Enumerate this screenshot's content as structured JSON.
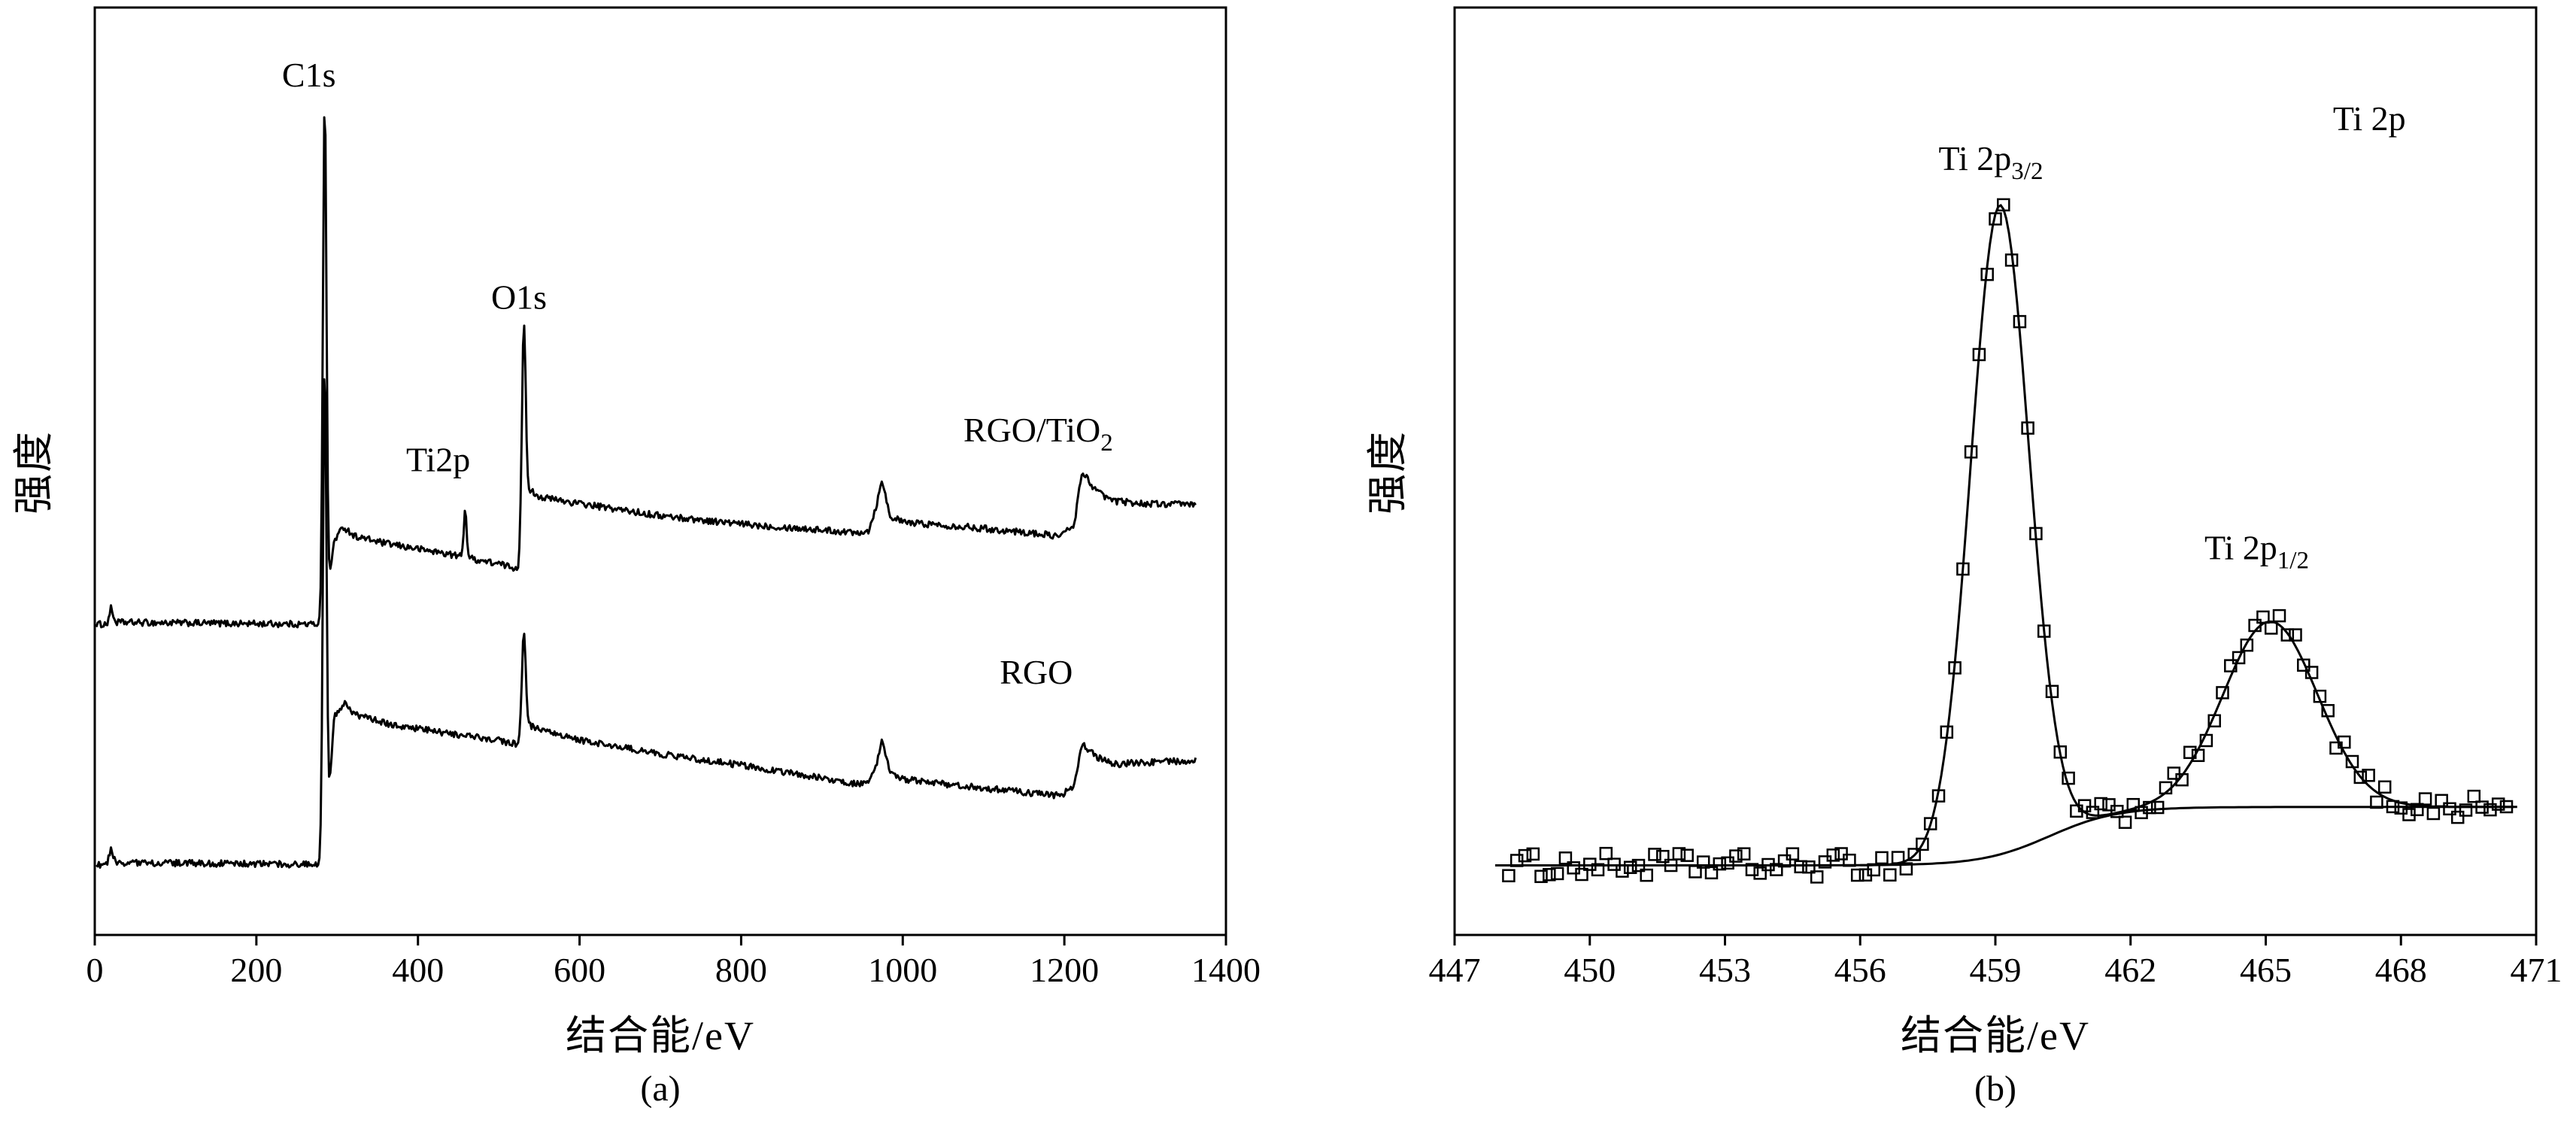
{
  "figure": {
    "background": "#ffffff",
    "panel_a": {
      "xlabel": "结合能/eV",
      "ylabel": "强度",
      "caption": "(a)"
    },
    "panel_b": {
      "xlabel": "结合能/eV",
      "ylabel": "强度",
      "caption": "(b)"
    }
  },
  "colors": {
    "line": "#000000",
    "axis": "#000000",
    "background": "#ffffff"
  },
  "chart_data": [
    {
      "id": "a",
      "type": "line",
      "description": "XPS survey spectra of RGO/TiO2 and RGO",
      "title": "",
      "xlabel": "结合能/eV",
      "ylabel": "强度",
      "xlim": [
        0,
        1400
      ],
      "x_ticks": [
        0,
        200,
        400,
        600,
        800,
        1000,
        1200,
        1400
      ],
      "ylim": [
        0,
        1
      ],
      "grid": false,
      "caption": "(a)",
      "series": [
        {
          "name": "RGO/TiO2",
          "peaks": [
            {
              "label": "C1s",
              "center": 284.6,
              "amp": 0.56,
              "sigma": 2.2
            },
            {
              "label": "Ti2p",
              "center": 458.5,
              "amp": 0.052,
              "sigma": 1.8
            },
            {
              "label": "O1s",
              "center": 531.0,
              "amp": 0.22,
              "sigma": 2.4
            }
          ],
          "baseline": [
            [
              2,
              0.335
            ],
            [
              15,
              0.335
            ],
            [
              20,
              0.352
            ],
            [
              26,
              0.337
            ],
            [
              275,
              0.335
            ],
            [
              286,
              0.345
            ],
            [
              296,
              0.425
            ],
            [
              308,
              0.44
            ],
            [
              322,
              0.43
            ],
            [
              360,
              0.422
            ],
            [
              430,
              0.412
            ],
            [
              465,
              0.406
            ],
            [
              500,
              0.4
            ],
            [
              524,
              0.395
            ],
            [
              538,
              0.48
            ],
            [
              552,
              0.472
            ],
            [
              600,
              0.465
            ],
            [
              700,
              0.452
            ],
            [
              800,
              0.443
            ],
            [
              880,
              0.438
            ],
            [
              940,
              0.434
            ],
            [
              958,
              0.436
            ],
            [
              968,
              0.465
            ],
            [
              974,
              0.492
            ],
            [
              984,
              0.452
            ],
            [
              1000,
              0.445
            ],
            [
              1080,
              0.44
            ],
            [
              1150,
              0.434
            ],
            [
              1195,
              0.43
            ],
            [
              1212,
              0.442
            ],
            [
              1222,
              0.5
            ],
            [
              1240,
              0.478
            ],
            [
              1260,
              0.468
            ],
            [
              1300,
              0.465
            ],
            [
              1363,
              0.464
            ]
          ],
          "noise": 0.0035
        },
        {
          "name": "RGO",
          "peaks": [
            {
              "label": "C1s",
              "center": 284.6,
              "amp": 0.53,
              "sigma": 2.2
            },
            {
              "label": "O1s",
              "center": 531.0,
              "amp": 0.11,
              "sigma": 2.4
            }
          ],
          "baseline": [
            [
              2,
              0.076
            ],
            [
              15,
              0.076
            ],
            [
              20,
              0.092
            ],
            [
              26,
              0.078
            ],
            [
              275,
              0.076
            ],
            [
              286,
              0.09
            ],
            [
              296,
              0.235
            ],
            [
              308,
              0.25
            ],
            [
              322,
              0.238
            ],
            [
              360,
              0.228
            ],
            [
              430,
              0.218
            ],
            [
              500,
              0.21
            ],
            [
              524,
              0.205
            ],
            [
              538,
              0.226
            ],
            [
              552,
              0.22
            ],
            [
              600,
              0.21
            ],
            [
              700,
              0.195
            ],
            [
              800,
              0.183
            ],
            [
              880,
              0.172
            ],
            [
              940,
              0.163
            ],
            [
              958,
              0.163
            ],
            [
              968,
              0.185
            ],
            [
              974,
              0.208
            ],
            [
              984,
              0.176
            ],
            [
              1000,
              0.168
            ],
            [
              1080,
              0.16
            ],
            [
              1150,
              0.154
            ],
            [
              1195,
              0.15
            ],
            [
              1212,
              0.16
            ],
            [
              1222,
              0.206
            ],
            [
              1240,
              0.192
            ],
            [
              1260,
              0.184
            ],
            [
              1300,
              0.186
            ],
            [
              1363,
              0.188
            ]
          ],
          "noise": 0.0035
        }
      ],
      "annotations": [
        {
          "text": "C1s",
          "sub": "",
          "x": 265,
          "y": 0.915,
          "anchor": "middle"
        },
        {
          "text": "Ti2p",
          "sub": "",
          "x": 425,
          "y": 0.5,
          "anchor": "middle"
        },
        {
          "text": "O1s",
          "sub": "",
          "x": 525,
          "y": 0.675,
          "anchor": "middle"
        },
        {
          "text": "RGO/TiO",
          "sub": "2",
          "x": 1075,
          "y": 0.532,
          "anchor": "start"
        },
        {
          "text": "RGO",
          "sub": "",
          "x": 1120,
          "y": 0.271,
          "anchor": "start"
        }
      ]
    },
    {
      "id": "b",
      "type": "scatter",
      "description": "Ti 2p high-resolution XPS spectrum with fit and background",
      "title": "",
      "xlabel": "结合能/eV",
      "ylabel": "强度",
      "xlim": [
        447,
        471
      ],
      "x_ticks": [
        447,
        450,
        453,
        456,
        459,
        462,
        465,
        468,
        471
      ],
      "ylim": [
        0,
        1
      ],
      "grid": false,
      "caption": "(b)",
      "background_curve": {
        "base": 0.075,
        "step": 0.063,
        "center": 460.2,
        "width": 0.75,
        "x_range": [
          456,
          470.6
        ]
      },
      "peaks": [
        {
          "label": "Ti 2p3/2",
          "center": 459.1,
          "amp": 0.7,
          "sigma": 0.65
        },
        {
          "label": "Ti 2p1/2",
          "center": 465.1,
          "amp": 0.2,
          "sigma": 1.05
        }
      ],
      "fit_range": [
        447.9,
        470.6
      ],
      "scatter": {
        "x_start": 448.2,
        "x_end": 470.4,
        "step": 0.18,
        "noise": 0.013,
        "marker": "open-square"
      },
      "annotations": [
        {
          "text": "Ti 2p",
          "sub": "",
          "x": 467.3,
          "y": 0.868,
          "anchor": "middle"
        },
        {
          "text": "Ti 2p",
          "sub": "3/2",
          "x": 458.9,
          "y": 0.825,
          "anchor": "middle"
        },
        {
          "text": "Ti 2p",
          "sub": "1/2",
          "x": 464.8,
          "y": 0.405,
          "anchor": "middle"
        }
      ]
    }
  ]
}
